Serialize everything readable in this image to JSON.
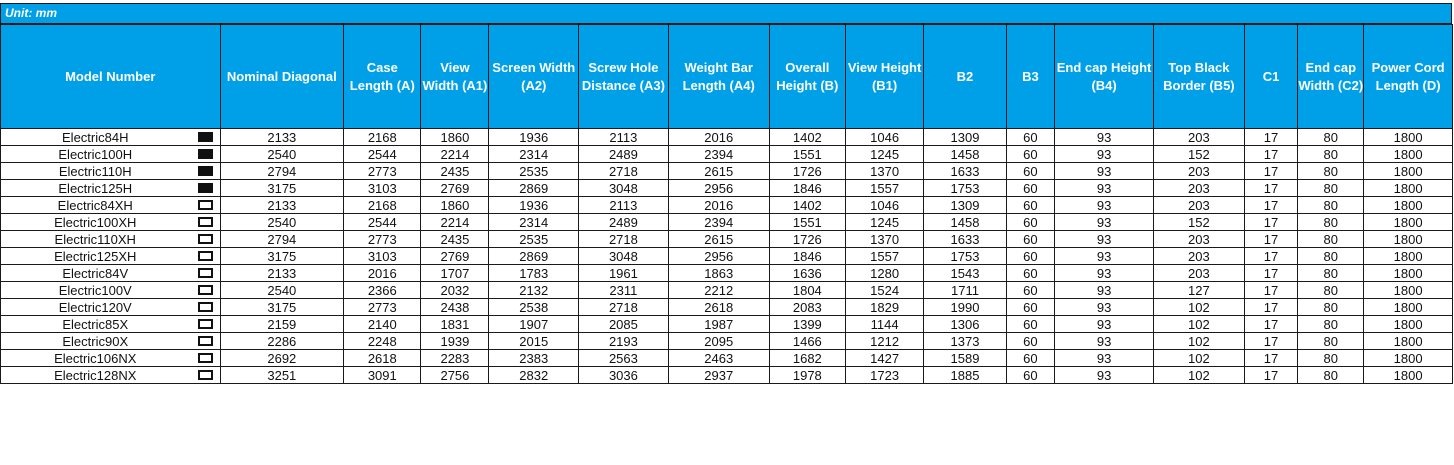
{
  "unit_label": "Unit: mm",
  "columns": [
    "Model Number",
    "Nominal Diagonal",
    "Case Length (A)",
    "View Width (A1)",
    "Screen Width (A2)",
    "Screw Hole Distance (A3)",
    "Weight Bar Length (A4)",
    "Overall Height (B)",
    "View Height (B1)",
    "B2",
    "B3",
    "End cap Height (B4)",
    "Top Black Border (B5)",
    "C1",
    "End cap Width (C2)",
    "Power Cord Length (D)"
  ],
  "colors": {
    "header_bg": "#00a0e9",
    "header_text": "#ffffff",
    "border": "#1a1a1a"
  },
  "rows": [
    {
      "model": "Electric84H",
      "swatch": "black",
      "values": [
        "2133",
        "2168",
        "1860",
        "1936",
        "2113",
        "2016",
        "1402",
        "1046",
        "1309",
        "60",
        "93",
        "203",
        "17",
        "80",
        "1800"
      ]
    },
    {
      "model": "Electric100H",
      "swatch": "black",
      "values": [
        "2540",
        "2544",
        "2214",
        "2314",
        "2489",
        "2394",
        "1551",
        "1245",
        "1458",
        "60",
        "93",
        "152",
        "17",
        "80",
        "1800"
      ]
    },
    {
      "model": "Electric110H",
      "swatch": "black",
      "values": [
        "2794",
        "2773",
        "2435",
        "2535",
        "2718",
        "2615",
        "1726",
        "1370",
        "1633",
        "60",
        "93",
        "203",
        "17",
        "80",
        "1800"
      ]
    },
    {
      "model": "Electric125H",
      "swatch": "black",
      "values": [
        "3175",
        "3103",
        "2769",
        "2869",
        "3048",
        "2956",
        "1846",
        "1557",
        "1753",
        "60",
        "93",
        "203",
        "17",
        "80",
        "1800"
      ]
    },
    {
      "model": "Electric84XH",
      "swatch": "white",
      "values": [
        "2133",
        "2168",
        "1860",
        "1936",
        "2113",
        "2016",
        "1402",
        "1046",
        "1309",
        "60",
        "93",
        "203",
        "17",
        "80",
        "1800"
      ]
    },
    {
      "model": "Electric100XH",
      "swatch": "white",
      "values": [
        "2540",
        "2544",
        "2214",
        "2314",
        "2489",
        "2394",
        "1551",
        "1245",
        "1458",
        "60",
        "93",
        "152",
        "17",
        "80",
        "1800"
      ]
    },
    {
      "model": "Electric110XH",
      "swatch": "white",
      "values": [
        "2794",
        "2773",
        "2435",
        "2535",
        "2718",
        "2615",
        "1726",
        "1370",
        "1633",
        "60",
        "93",
        "203",
        "17",
        "80",
        "1800"
      ]
    },
    {
      "model": "Electric125XH",
      "swatch": "white",
      "values": [
        "3175",
        "3103",
        "2769",
        "2869",
        "3048",
        "2956",
        "1846",
        "1557",
        "1753",
        "60",
        "93",
        "203",
        "17",
        "80",
        "1800"
      ]
    },
    {
      "model": "Electric84V",
      "swatch": "white",
      "values": [
        "2133",
        "2016",
        "1707",
        "1783",
        "1961",
        "1863",
        "1636",
        "1280",
        "1543",
        "60",
        "93",
        "203",
        "17",
        "80",
        "1800"
      ]
    },
    {
      "model": "Electric100V",
      "swatch": "white",
      "values": [
        "2540",
        "2366",
        "2032",
        "2132",
        "2311",
        "2212",
        "1804",
        "1524",
        "1711",
        "60",
        "93",
        "127",
        "17",
        "80",
        "1800"
      ]
    },
    {
      "model": "Electric120V",
      "swatch": "white",
      "values": [
        "3175",
        "2773",
        "2438",
        "2538",
        "2718",
        "2618",
        "2083",
        "1829",
        "1990",
        "60",
        "93",
        "102",
        "17",
        "80",
        "1800"
      ]
    },
    {
      "model": "Electric85X",
      "swatch": "white",
      "values": [
        "2159",
        "2140",
        "1831",
        "1907",
        "2085",
        "1987",
        "1399",
        "1144",
        "1306",
        "60",
        "93",
        "102",
        "17",
        "80",
        "1800"
      ]
    },
    {
      "model": "Electric90X",
      "swatch": "white",
      "values": [
        "2286",
        "2248",
        "1939",
        "2015",
        "2193",
        "2095",
        "1466",
        "1212",
        "1373",
        "60",
        "93",
        "102",
        "17",
        "80",
        "1800"
      ]
    },
    {
      "model": "Electric106NX",
      "swatch": "white",
      "values": [
        "2692",
        "2618",
        "2283",
        "2383",
        "2563",
        "2463",
        "1682",
        "1427",
        "1589",
        "60",
        "93",
        "102",
        "17",
        "80",
        "1800"
      ]
    },
    {
      "model": "Electric128NX",
      "swatch": "white",
      "values": [
        "3251",
        "3091",
        "2756",
        "2832",
        "3036",
        "2937",
        "1978",
        "1723",
        "1885",
        "60",
        "93",
        "102",
        "17",
        "80",
        "1800"
      ]
    }
  ]
}
